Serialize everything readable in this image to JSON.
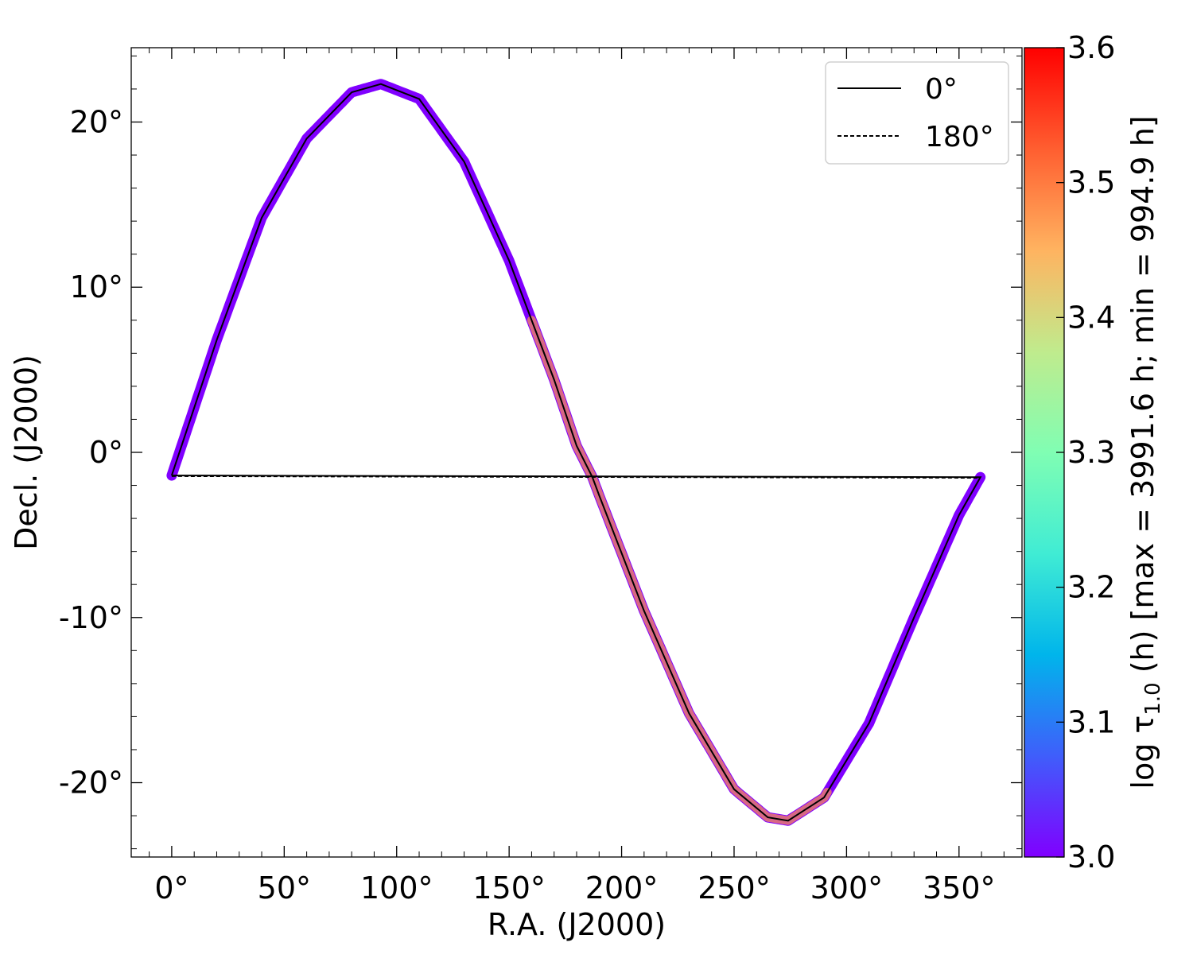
{
  "chart_data": {
    "type": "scatter",
    "xlabel": "R.A. (J2000)",
    "ylabel": "Decl. (J2000)",
    "xlim": [
      -18,
      378
    ],
    "ylim": [
      -24.5,
      24.5
    ],
    "x_ticks": [
      0,
      50,
      100,
      150,
      200,
      250,
      300,
      350
    ],
    "x_tick_labels": [
      "0°",
      "50°",
      "100°",
      "150°",
      "200°",
      "250°",
      "300°",
      "350°"
    ],
    "y_ticks": [
      -20,
      -10,
      0,
      10,
      20
    ],
    "y_tick_labels": [
      "-20°",
      "-10°",
      "0°",
      "10°",
      "20°"
    ],
    "grid": false,
    "legend": {
      "placement": "top-right",
      "entries": [
        {
          "label": "0°",
          "style": "solid"
        },
        {
          "label": "180°",
          "style": "dashed"
        }
      ]
    },
    "series": [
      {
        "name": "0°",
        "style": "solid",
        "points": [
          [
            0,
            -1.4
          ],
          [
            20,
            6.8
          ],
          [
            40,
            14.2
          ],
          [
            60,
            19.0
          ],
          [
            80,
            21.8
          ],
          [
            93,
            22.3
          ],
          [
            110,
            21.4
          ],
          [
            130,
            17.6
          ],
          [
            150,
            11.6
          ],
          [
            170,
            4.4
          ],
          [
            180,
            0.4
          ],
          [
            187,
            -1.5
          ],
          [
            190,
            -2.6
          ],
          [
            210,
            -9.6
          ],
          [
            230,
            -15.8
          ],
          [
            250,
            -20.4
          ],
          [
            265,
            -22.1
          ],
          [
            274,
            -22.3
          ],
          [
            290,
            -20.9
          ],
          [
            310,
            -16.4
          ],
          [
            330,
            -10.0
          ],
          [
            350,
            -3.8
          ],
          [
            359.5,
            -1.5
          ],
          [
            0,
            -1.4
          ]
        ]
      },
      {
        "name": "180°",
        "style": "dashed",
        "points": [
          [
            0,
            -1.45
          ],
          [
            359.5,
            -1.55
          ]
        ]
      }
    ],
    "colorbar": {
      "label_prefix": "log τ",
      "label_sub": "1.0",
      "label_suffix": " (h) [max = 3991.6 h; min = 994.9 h]",
      "range": [
        3.0,
        3.6
      ],
      "ticks": [
        3.0,
        3.1,
        3.2,
        3.3,
        3.4,
        3.5,
        3.6
      ],
      "tick_labels": [
        "3.0",
        "3.1",
        "3.2",
        "3.3",
        "3.4",
        "3.5",
        "3.6"
      ],
      "colormap": [
        "#8000ff",
        "#3f5efb",
        "#00b5eb",
        "#40ecd4",
        "#80feb3",
        "#c0eb8d",
        "#ffb360",
        "#ff5e30",
        "#ff0000"
      ]
    },
    "marker_colors": {
      "low": "#8000ff",
      "mid": "#e87a6e"
    }
  }
}
